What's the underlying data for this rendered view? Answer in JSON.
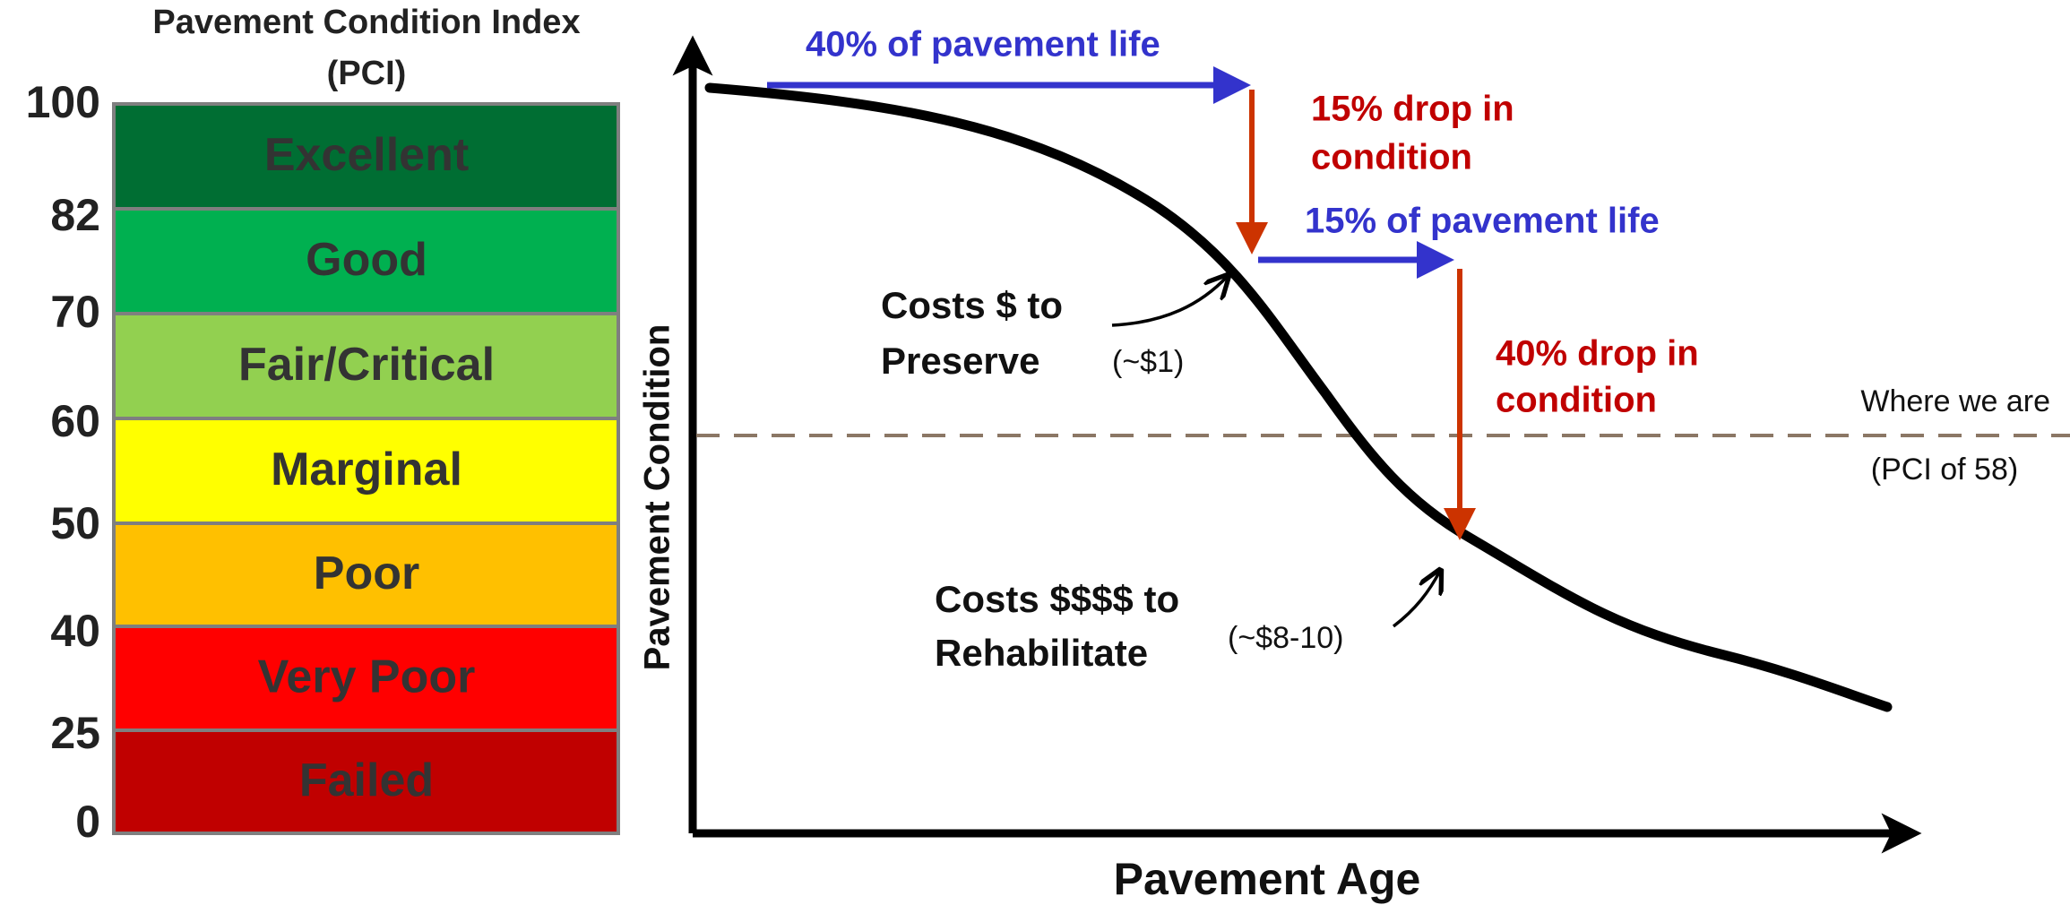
{
  "pci_scale": {
    "title_line1": "Pavement Condition Index",
    "title_line2": "(PCI)",
    "ticks": [
      "100",
      "82",
      "70",
      "60",
      "50",
      "40",
      "25",
      "0"
    ],
    "bands": [
      "Excellent",
      "Good",
      "Fair/Critical",
      "Marginal",
      "Poor",
      "Very Poor",
      "Failed"
    ]
  },
  "diagram": {
    "y_axis_label": "Pavement Condition",
    "x_axis_label": "Pavement Age",
    "annotations": {
      "first_life": "40% of pavement life",
      "first_drop_line1": "15% drop in",
      "first_drop_line2": "condition",
      "second_life": "15% of pavement life",
      "second_drop_line1": "40% drop in",
      "second_drop_line2": "condition",
      "preserve_line1": "Costs $ to",
      "preserve_line2": "Preserve",
      "preserve_cost": "(~$1)",
      "rehab_line1": "Costs $$$$ to",
      "rehab_line2": "Rehabilitate",
      "rehab_cost": "(~$8-10)",
      "where_line1": "Where we are",
      "where_line2": "(PCI of 58)"
    }
  }
}
